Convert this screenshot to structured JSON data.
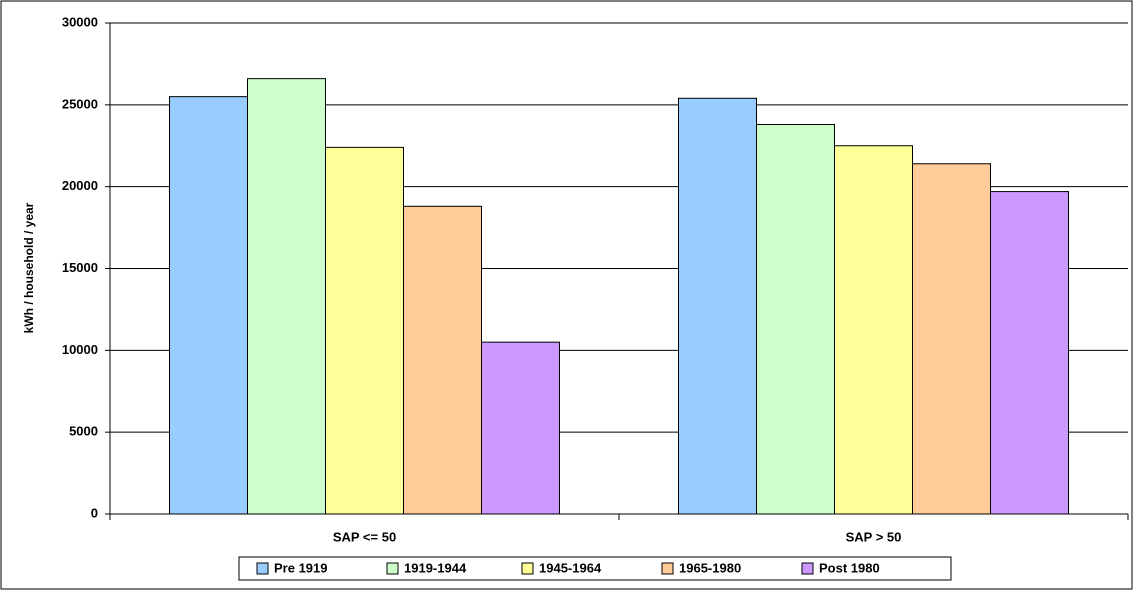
{
  "chart_data": {
    "type": "bar",
    "y_label": "kWh / household / year",
    "categories": [
      "SAP <= 50",
      "SAP > 50"
    ],
    "series": [
      {
        "name": "Pre 1919",
        "color": "#99ccff",
        "values": [
          25500,
          25400
        ]
      },
      {
        "name": "1919-1944",
        "color": "#ccffcc",
        "values": [
          26600,
          23800
        ]
      },
      {
        "name": "1945-1964",
        "color": "#ffff99",
        "values": [
          22400,
          22500
        ]
      },
      {
        "name": "1965-1980",
        "color": "#ffcc99",
        "values": [
          18800,
          21400
        ]
      },
      {
        "name": "Post 1980",
        "color": "#cc99ff",
        "values": [
          10500,
          19700
        ]
      }
    ],
    "ylim": [
      0,
      30000
    ],
    "yticks": [
      0,
      5000,
      10000,
      15000,
      20000,
      25000,
      30000
    ],
    "grid": true,
    "legend": "bottom"
  }
}
